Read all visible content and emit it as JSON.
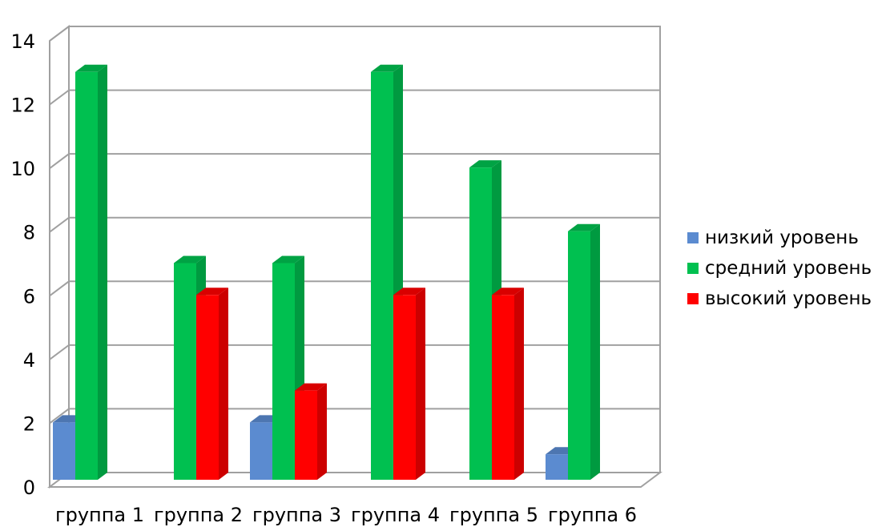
{
  "chart_data": {
    "type": "bar",
    "categories": [
      "группа 1",
      "группа 2",
      "группа 3",
      "группа 4",
      "группа 5",
      "группа 6"
    ],
    "series": [
      {
        "name": "низкий уровень",
        "values": [
          2,
          0,
          2,
          0,
          0,
          1
        ],
        "color": "#5b8bd0"
      },
      {
        "name": "средний уровень",
        "values": [
          13,
          7,
          7,
          13,
          10,
          8
        ],
        "color": "#00c050"
      },
      {
        "name": "высокий уровень",
        "values": [
          0,
          6,
          3,
          6,
          6,
          0
        ],
        "color": "#ff0000"
      }
    ],
    "yticks": [
      0,
      2,
      4,
      6,
      8,
      10,
      12,
      14
    ],
    "ylim": [
      0,
      14
    ],
    "grid": true,
    "legend": "right",
    "title": "",
    "xlabel": "",
    "ylabel": ""
  }
}
